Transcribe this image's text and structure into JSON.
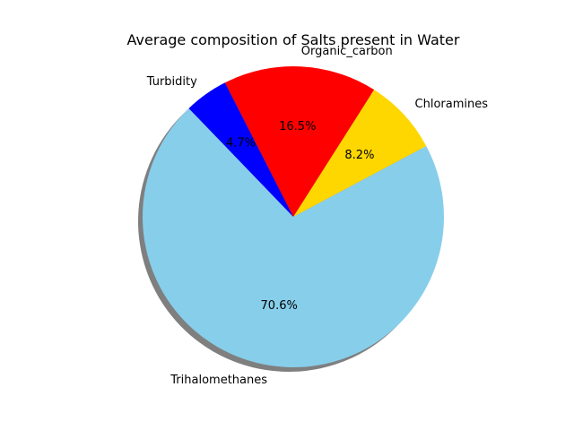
{
  "chart_data": {
    "type": "pie",
    "title": "Average composition of Salts present in Water",
    "slices": [
      {
        "label": "Trihalomethanes",
        "value": 70.6,
        "pct_label": "70.6%",
        "color": "#87CEEB"
      },
      {
        "label": "Chloramines",
        "value": 8.2,
        "pct_label": "8.2%",
        "color": "#FFD700"
      },
      {
        "label": "Organic_carbon",
        "value": 16.5,
        "pct_label": "16.5%",
        "color": "#FF0000"
      },
      {
        "label": "Turbidity",
        "value": 4.7,
        "pct_label": "4.7%",
        "color": "#0000FF"
      }
    ],
    "shadow": true,
    "legend": "none"
  }
}
